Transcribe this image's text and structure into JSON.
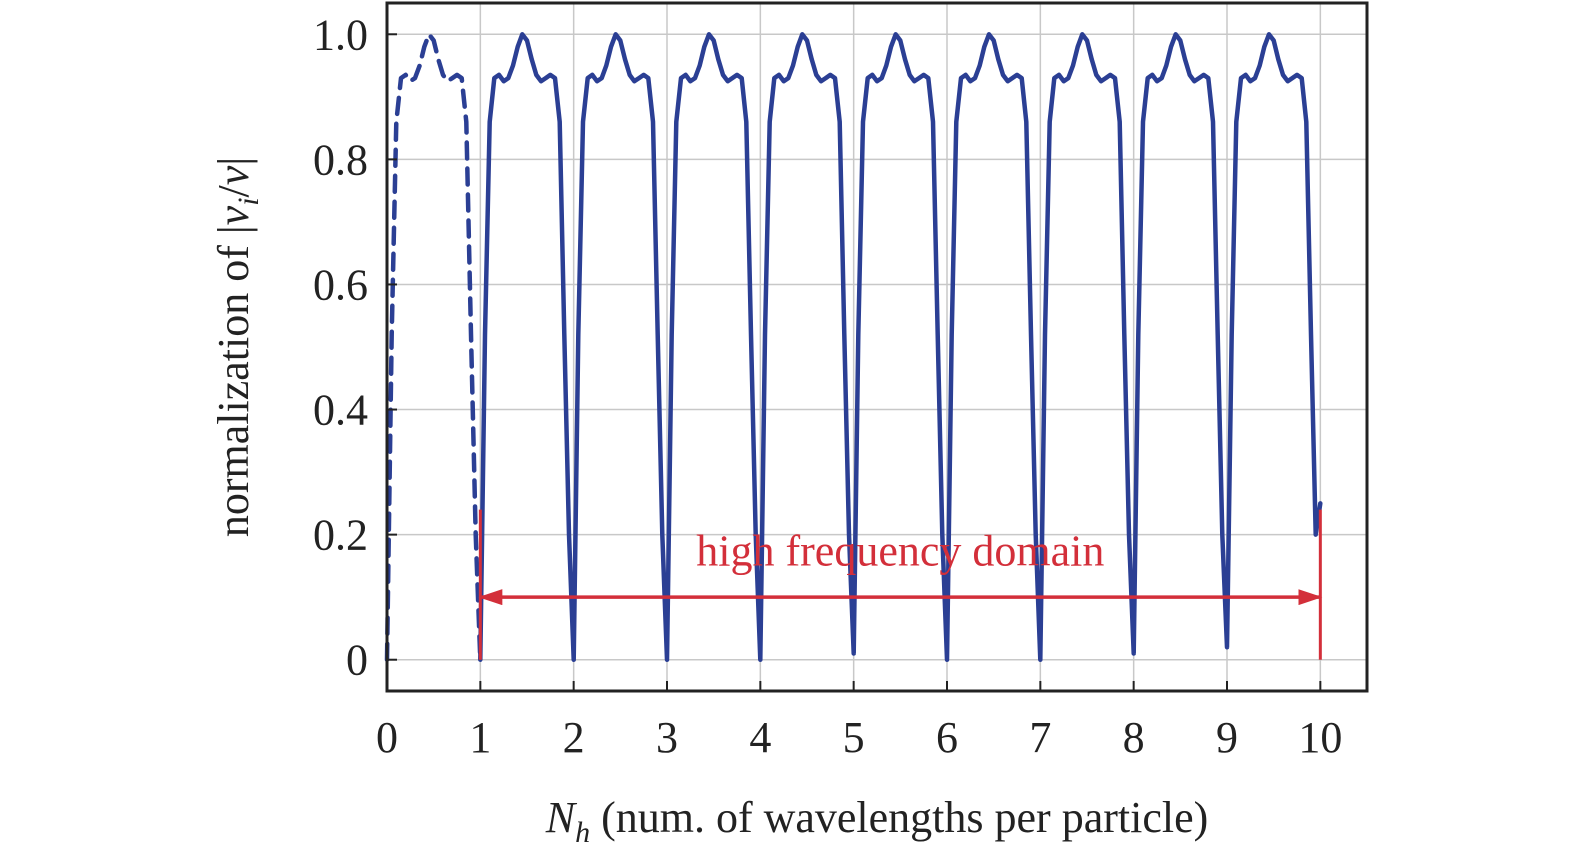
{
  "chart_data": {
    "type": "line",
    "title": "",
    "xlabel": {
      "symbol": "N",
      "subscript": "h",
      "text": " (num. of wavelengths per particle)"
    },
    "ylabel": {
      "prefix": "normalization of |",
      "v1": "v",
      "sub": "i",
      "sep": "/",
      "v2": "v",
      "suffix": "|"
    },
    "xlim": [
      0,
      10.5
    ],
    "ylim": [
      -0.05,
      1.05
    ],
    "x_ticks": [
      0,
      1,
      2,
      3,
      4,
      5,
      6,
      7,
      8,
      9,
      10
    ],
    "x_tick_labels": [
      "0",
      "1",
      "2",
      "3",
      "4",
      "5",
      "6",
      "7",
      "8",
      "9",
      "10"
    ],
    "y_ticks": [
      0,
      0.2,
      0.4,
      0.6,
      0.8,
      1.0
    ],
    "y_tick_labels": [
      "0",
      "0.2",
      "0.4",
      "0.6",
      "0.8",
      "1.0"
    ],
    "grid": true,
    "series": [
      {
        "style": "dashed",
        "color": "#2b3f94",
        "x": [
          0.0,
          0.05,
          0.1,
          0.15,
          0.2,
          0.25,
          0.3,
          0.35,
          0.4,
          0.45,
          0.5,
          0.55,
          0.6,
          0.65,
          0.7,
          0.75,
          0.8,
          0.85,
          0.9,
          0.95,
          1.0
        ],
        "y": [
          0.0,
          0.52,
          0.86,
          0.93,
          0.935,
          0.925,
          0.93,
          0.95,
          0.98,
          1.0,
          0.99,
          0.96,
          0.935,
          0.925,
          0.93,
          0.935,
          0.93,
          0.86,
          0.52,
          0.2,
          0.0
        ]
      },
      {
        "style": "solid",
        "color": "#2b3f94",
        "x": [
          1.0,
          1.05,
          1.1,
          1.15,
          1.2,
          1.25,
          1.3,
          1.35,
          1.4,
          1.45,
          1.5,
          1.55,
          1.6,
          1.65,
          1.7,
          1.75,
          1.8,
          1.85,
          1.9,
          1.95,
          2.0,
          2.05,
          2.1,
          2.15,
          2.2,
          2.25,
          2.3,
          2.35,
          2.4,
          2.45,
          2.5,
          2.55,
          2.6,
          2.65,
          2.7,
          2.75,
          2.8,
          2.85,
          2.9,
          2.95,
          3.0,
          3.05,
          3.1,
          3.15,
          3.2,
          3.25,
          3.3,
          3.35,
          3.4,
          3.45,
          3.5,
          3.55,
          3.6,
          3.65,
          3.7,
          3.75,
          3.8,
          3.85,
          3.9,
          3.95,
          4.0,
          4.05,
          4.1,
          4.15,
          4.2,
          4.25,
          4.3,
          4.35,
          4.4,
          4.45,
          4.5,
          4.55,
          4.6,
          4.65,
          4.7,
          4.75,
          4.8,
          4.85,
          4.9,
          4.95,
          5.0,
          5.05,
          5.1,
          5.15,
          5.2,
          5.25,
          5.3,
          5.35,
          5.4,
          5.45,
          5.5,
          5.55,
          5.6,
          5.65,
          5.7,
          5.75,
          5.8,
          5.85,
          5.9,
          5.95,
          6.0,
          6.05,
          6.1,
          6.15,
          6.2,
          6.25,
          6.3,
          6.35,
          6.4,
          6.45,
          6.5,
          6.55,
          6.6,
          6.65,
          6.7,
          6.75,
          6.8,
          6.85,
          6.9,
          6.95,
          7.0,
          7.05,
          7.1,
          7.15,
          7.2,
          7.25,
          7.3,
          7.35,
          7.4,
          7.45,
          7.5,
          7.55,
          7.6,
          7.65,
          7.7,
          7.75,
          7.8,
          7.85,
          7.9,
          7.95,
          8.0,
          8.05,
          8.1,
          8.15,
          8.2,
          8.25,
          8.3,
          8.35,
          8.4,
          8.45,
          8.5,
          8.55,
          8.6,
          8.65,
          8.7,
          8.75,
          8.8,
          8.85,
          8.9,
          8.95,
          9.0,
          9.05,
          9.1,
          9.15,
          9.2,
          9.25,
          9.3,
          9.35,
          9.4,
          9.45,
          9.5,
          9.55,
          9.6,
          9.65,
          9.7,
          9.75,
          9.8,
          9.85,
          9.9,
          9.95,
          10.0
        ],
        "y": [
          0.0,
          0.52,
          0.86,
          0.93,
          0.935,
          0.925,
          0.93,
          0.95,
          0.98,
          1.0,
          0.99,
          0.96,
          0.935,
          0.925,
          0.93,
          0.935,
          0.93,
          0.86,
          0.52,
          0.2,
          0.0,
          0.52,
          0.86,
          0.93,
          0.935,
          0.925,
          0.93,
          0.95,
          0.98,
          1.0,
          0.99,
          0.96,
          0.935,
          0.925,
          0.93,
          0.935,
          0.93,
          0.86,
          0.52,
          0.2,
          0.0,
          0.52,
          0.86,
          0.93,
          0.935,
          0.925,
          0.93,
          0.95,
          0.98,
          1.0,
          0.99,
          0.96,
          0.935,
          0.925,
          0.93,
          0.935,
          0.93,
          0.86,
          0.52,
          0.2,
          0.0,
          0.52,
          0.86,
          0.93,
          0.935,
          0.925,
          0.93,
          0.95,
          0.98,
          1.0,
          0.99,
          0.96,
          0.935,
          0.925,
          0.93,
          0.935,
          0.93,
          0.86,
          0.52,
          0.2,
          0.01,
          0.52,
          0.86,
          0.93,
          0.935,
          0.925,
          0.93,
          0.95,
          0.98,
          1.0,
          0.99,
          0.96,
          0.935,
          0.925,
          0.93,
          0.935,
          0.93,
          0.86,
          0.52,
          0.2,
          0.0,
          0.52,
          0.86,
          0.93,
          0.935,
          0.925,
          0.93,
          0.95,
          0.98,
          1.0,
          0.99,
          0.96,
          0.935,
          0.925,
          0.93,
          0.935,
          0.93,
          0.86,
          0.52,
          0.2,
          0.0,
          0.52,
          0.86,
          0.93,
          0.935,
          0.925,
          0.93,
          0.95,
          0.98,
          1.0,
          0.99,
          0.96,
          0.935,
          0.925,
          0.93,
          0.935,
          0.93,
          0.86,
          0.52,
          0.2,
          0.01,
          0.52,
          0.86,
          0.93,
          0.935,
          0.925,
          0.93,
          0.95,
          0.98,
          1.0,
          0.99,
          0.96,
          0.935,
          0.925,
          0.93,
          0.935,
          0.93,
          0.86,
          0.52,
          0.2,
          0.02,
          0.52,
          0.86,
          0.93,
          0.935,
          0.925,
          0.93,
          0.95,
          0.98,
          1.0,
          0.99,
          0.96,
          0.935,
          0.925,
          0.93,
          0.935,
          0.93,
          0.86,
          0.52,
          0.2,
          0.25
        ]
      }
    ],
    "annotation": {
      "text": "high frequency domain",
      "x_start": 1,
      "x_end": 10,
      "y_arrow": 0.1,
      "y_text": 0.17,
      "bracket_y": [
        0,
        0.24
      ],
      "color": "#d32f3a"
    }
  }
}
